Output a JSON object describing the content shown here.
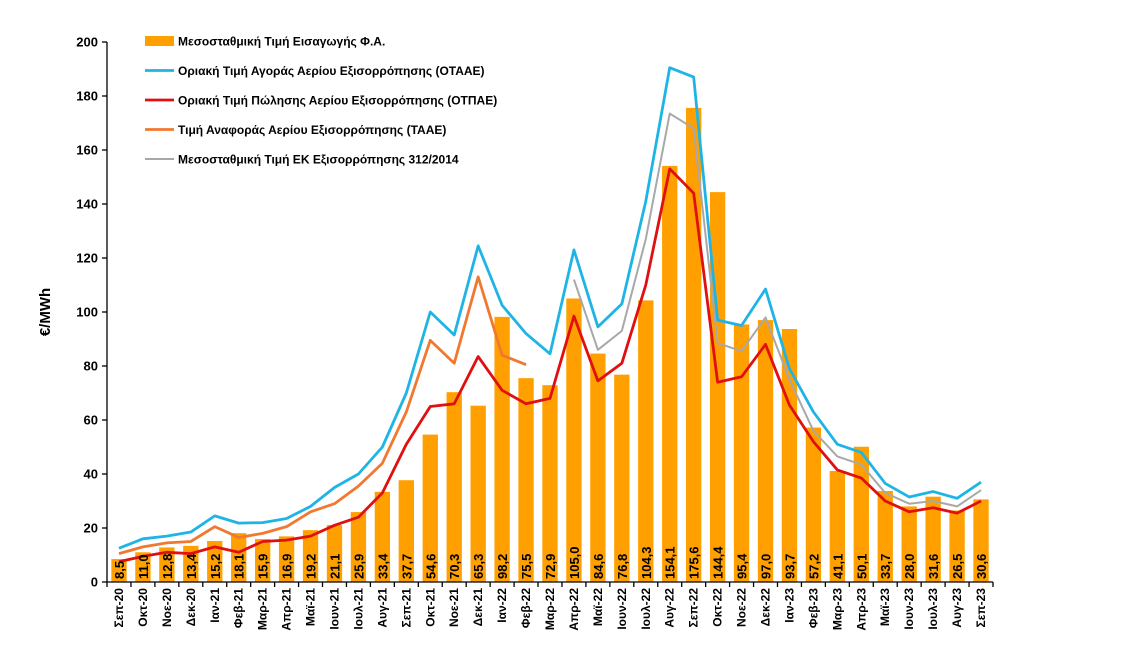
{
  "chart_data": {
    "type": "bar",
    "title": "",
    "xlabel": "",
    "ylabel": "€/MWh",
    "ylim": [
      0,
      200
    ],
    "yticks": [
      0,
      20,
      40,
      60,
      80,
      100,
      120,
      140,
      160,
      180,
      200
    ],
    "grid": false,
    "legend_position": "top-left",
    "categories": [
      "Σεπ-20",
      "Οκτ-20",
      "Νοε-20",
      "Δεκ-20",
      "Ιαν-21",
      "Φεβ-21",
      "Μαρ-21",
      "Απρ-21",
      "Μαϊ-21",
      "Ιουν-21",
      "Ιουλ-21",
      "Αυγ-21",
      "Σεπ-21",
      "Οκτ-21",
      "Νοε-21",
      "Δεκ-21",
      "Ιαν-22",
      "Φεβ-22",
      "Μαρ-22",
      "Απρ-22",
      "Μαϊ-22",
      "Ιουν-22",
      "Ιουλ-22",
      "Αυγ-22",
      "Σεπ-22",
      "Οκτ-22",
      "Νοε-22",
      "Δεκ-22",
      "Ιαν-23",
      "Φεβ-23",
      "Μαρ-23",
      "Απρ-23",
      "Μαϊ-23",
      "Ιουν-23",
      "Ιουλ-23",
      "Αυγ-23",
      "Σεπ-23"
    ],
    "series": [
      {
        "name": "Μεσοσταθμική Τιμή Εισαγωγής Φ.Α.",
        "kind": "bar",
        "color": "#FFA000",
        "values": [
          8.5,
          11.0,
          12.8,
          13.4,
          15.2,
          18.1,
          15.9,
          16.9,
          19.2,
          21.1,
          25.9,
          33.4,
          37.7,
          54.6,
          70.3,
          65.3,
          98.2,
          75.5,
          72.9,
          105.0,
          84.6,
          76.8,
          104.3,
          154.1,
          175.6,
          144.4,
          95.4,
          97.0,
          93.7,
          57.2,
          41.1,
          50.1,
          33.7,
          28.0,
          31.6,
          26.5,
          30.6
        ],
        "labels": [
          "8,5",
          "11,0",
          "12,8",
          "13,4",
          "15,2",
          "18,1",
          "15,9",
          "16,9",
          "19,2",
          "21,1",
          "25,9",
          "33,4",
          "37,7",
          "54,6",
          "70,3",
          "65,3",
          "98,2",
          "75,5",
          "72,9",
          "105,0",
          "84,6",
          "76,8",
          "104,3",
          "154,1",
          "175,6",
          "144,4",
          "95,4",
          "97,0",
          "93,7",
          "57,2",
          "41,1",
          "50,1",
          "33,7",
          "28,0",
          "31,6",
          "26,5",
          "30,6"
        ]
      },
      {
        "name": "Οριακή Τιμή Αγοράς Αερίου Εξισορρόπησης  (ΟΤΑΑΕ)",
        "kind": "line",
        "color": "#1EB4E6",
        "values": [
          12.5,
          16,
          17,
          18.5,
          24.5,
          21.8,
          22,
          23.5,
          28,
          35,
          40,
          50,
          70,
          100,
          91.5,
          124.5,
          102.5,
          92,
          84.5,
          123,
          94.5,
          103,
          141,
          190.5,
          187,
          97,
          95,
          108.5,
          79,
          63,
          51,
          48,
          36.5,
          31.5,
          33.5,
          31,
          37
        ]
      },
      {
        "name": "Οριακή Τιμή Πώλησης Αερίου Εξισορρόπησης (ΟΤΠΑΕ)",
        "kind": "line",
        "color": "#E01010",
        "values": [
          7.5,
          9.5,
          11,
          10.5,
          13,
          11,
          15,
          15.5,
          17,
          21,
          24,
          33,
          51,
          65,
          66,
          83.5,
          71,
          66,
          68,
          98.5,
          74.5,
          81,
          110,
          153,
          144,
          74,
          76,
          88,
          65.5,
          52,
          41.5,
          38.5,
          30,
          26,
          27.5,
          25.5,
          30
        ]
      },
      {
        "name": "Τιμή Αναφοράς Αερίου Εξισορρόπησης (ΤΑΑΕ)",
        "kind": "line",
        "color": "#F07830",
        "values": [
          10.5,
          13,
          14.5,
          15,
          20.5,
          16.5,
          18,
          20.5,
          26,
          29,
          35.5,
          44,
          63,
          89.5,
          81,
          113,
          84,
          80.5,
          null,
          null,
          null,
          null,
          null,
          null,
          null,
          null,
          null,
          null,
          null,
          null,
          null,
          null,
          null,
          null,
          null,
          null,
          null
        ]
      },
      {
        "name": "Μεσοσταθμική Τιμή ΕΚ Εξισορρόπησης 312/2014",
        "kind": "line",
        "color": "#A8A8A8",
        "values": [
          null,
          null,
          null,
          null,
          null,
          null,
          null,
          null,
          null,
          null,
          null,
          null,
          null,
          null,
          null,
          null,
          null,
          null,
          null,
          112,
          86,
          93,
          127,
          173.5,
          168,
          88.5,
          85.5,
          98,
          75,
          56,
          46.5,
          43.5,
          33,
          29,
          30,
          28,
          34
        ]
      }
    ]
  }
}
